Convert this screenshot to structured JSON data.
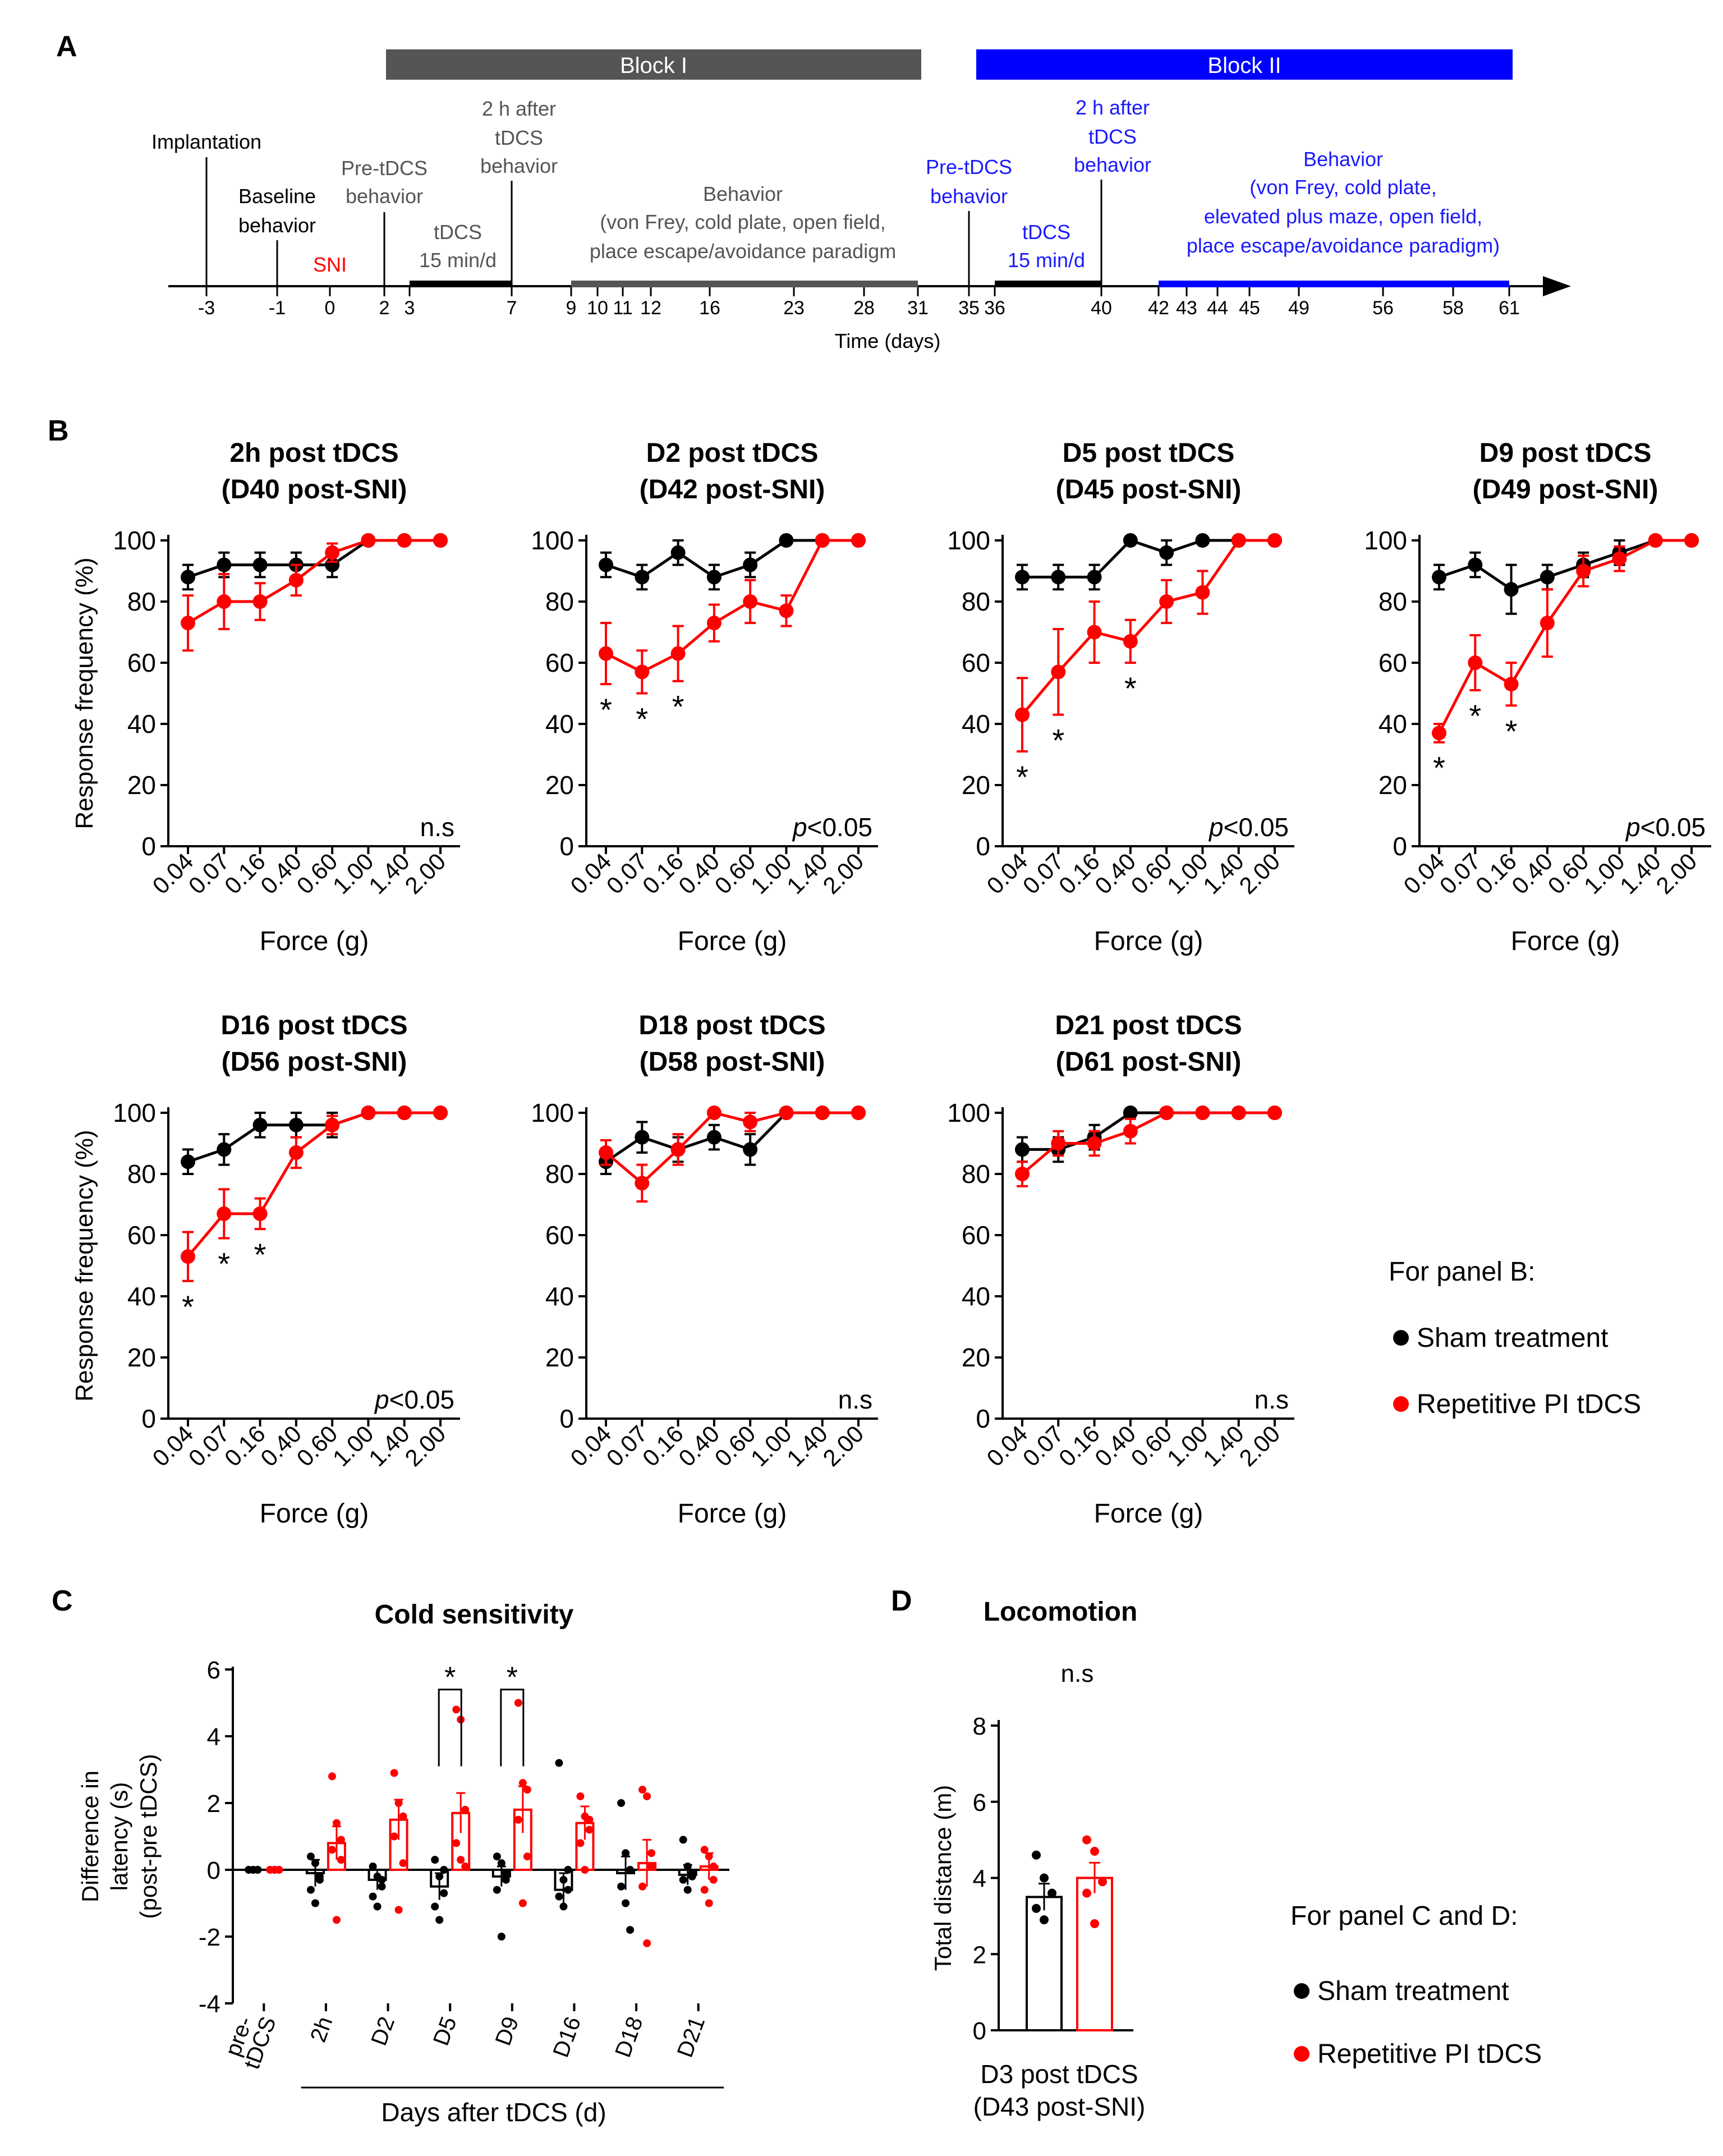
{
  "panel_labels": {
    "a": "A",
    "b": "B",
    "c": "C",
    "d": "D"
  },
  "colors": {
    "sham": "#000000",
    "tdcs": "#ff0000",
    "block1": "#555555",
    "block2": "#0000ff",
    "blue_text": "#1a1aff"
  },
  "timeline": {
    "block1": "Block I",
    "block2": "Block II",
    "axis_label": "Time (days)",
    "ticks": [
      "-3",
      "-1",
      "0",
      "2",
      "3",
      "7",
      "9",
      "10",
      "11",
      "12",
      "16",
      "23",
      "28",
      "31",
      "35",
      "36",
      "40",
      "42",
      "43",
      "44",
      "45",
      "49",
      "56",
      "58",
      "61"
    ],
    "events": {
      "implantation": "Implantation",
      "baseline_1": "Baseline",
      "baseline_2": "behavior",
      "sni": "SNI",
      "pre1_1": "Pre-tDCS",
      "pre1_2": "behavior",
      "tdcs1_1": "tDCS",
      "tdcs1_2": "15 min/d",
      "after1_1": "2 h after",
      "after1_2": "tDCS",
      "after1_3": "behavior",
      "beh1_1": "Behavior",
      "beh1_2": "(von Frey, cold plate, open field,",
      "beh1_3": "place escape/avoidance paradigm",
      "pre2_1": "Pre-tDCS",
      "pre2_2": "behavior",
      "after2_1": "2 h after",
      "after2_2": "tDCS",
      "after2_3": "behavior",
      "tdcs2_1": "tDCS",
      "tdcs2_2": "15 min/d",
      "beh2_1": "Behavior",
      "beh2_2": "(von Frey, cold plate,",
      "beh2_3": "elevated plus maze, open field,",
      "beh2_4": "place escape/avoidance paradigm)"
    }
  },
  "panel_b_axes": {
    "ylabel": "Response frequency (%)",
    "xlabel": "Force (g)",
    "yticks": [
      "0",
      "20",
      "40",
      "60",
      "80",
      "100"
    ],
    "xticks": [
      "0.04",
      "0.07",
      "0.16",
      "0.40",
      "0.60",
      "1.00",
      "1.40",
      "2.00"
    ]
  },
  "legend_b": {
    "title": "For panel B:",
    "sham": "Sham treatment",
    "tdcs": "Repetitive PI tDCS"
  },
  "legend_cd": {
    "title": "For panel C and D:",
    "sham": "Sham treatment",
    "tdcs": "Repetitive PI tDCS"
  },
  "panel_c_axes": {
    "ylabel_1": "Difference in",
    "ylabel_2": "latency (s)",
    "ylabel_3": "(post-pre tDCS)",
    "xlabel": "Days after tDCS (d)",
    "yticks": [
      "6",
      "4",
      "2",
      "0",
      "-2",
      "-4"
    ],
    "cat_pre_1": "pre-",
    "cat_pre_2": "tDCS"
  },
  "panel_d_axes": {
    "ylabel": "Total distance (m)",
    "yticks": [
      "0",
      "2",
      "4",
      "6",
      "8"
    ],
    "xlabel_1": "D3 post tDCS",
    "xlabel_2": "(D43 post-SNI)"
  },
  "chart_data": [
    {
      "type": "line",
      "id": "b1",
      "title": "2h post tDCS",
      "subtitle": "(D40 post-SNI)",
      "categories": [
        "0.04",
        "0.07",
        "0.16",
        "0.40",
        "0.60",
        "1.00",
        "1.40",
        "2.00"
      ],
      "series": [
        {
          "name": "Sham treatment",
          "values": [
            88,
            92,
            92,
            92,
            92,
            100,
            100,
            100
          ],
          "err": [
            4,
            4,
            4,
            4,
            4,
            0,
            0,
            0
          ]
        },
        {
          "name": "Repetitive PI tDCS",
          "values": [
            73,
            80,
            80,
            87,
            96,
            100,
            100,
            100
          ],
          "err": [
            9,
            9,
            6,
            5,
            3,
            0,
            0,
            0
          ]
        }
      ],
      "ylim": [
        0,
        100
      ],
      "annotation": "n.s",
      "stars": []
    },
    {
      "type": "line",
      "id": "b2",
      "title": "D2 post tDCS",
      "subtitle": "(D42 post-SNI)",
      "categories": [
        "0.04",
        "0.07",
        "0.16",
        "0.40",
        "0.60",
        "1.00",
        "1.40",
        "2.00"
      ],
      "series": [
        {
          "name": "Sham treatment",
          "values": [
            92,
            88,
            96,
            88,
            92,
            100,
            100,
            100
          ],
          "err": [
            4,
            4,
            4,
            4,
            4,
            0,
            0,
            0
          ]
        },
        {
          "name": "Repetitive PI tDCS",
          "values": [
            63,
            57,
            63,
            73,
            80,
            77,
            100,
            100
          ],
          "err": [
            10,
            7,
            9,
            6,
            7,
            5,
            0,
            0
          ]
        }
      ],
      "ylim": [
        0,
        100
      ],
      "annotation_pre": "p",
      "annotation": "<0.05",
      "stars": [
        0,
        1,
        2
      ]
    },
    {
      "type": "line",
      "id": "b3",
      "title": "D5 post tDCS",
      "subtitle": "(D45 post-SNI)",
      "categories": [
        "0.04",
        "0.07",
        "0.16",
        "0.40",
        "0.60",
        "1.00",
        "1.40",
        "2.00"
      ],
      "series": [
        {
          "name": "Sham treatment",
          "values": [
            88,
            88,
            88,
            100,
            96,
            100,
            100,
            100
          ],
          "err": [
            4,
            4,
            4,
            0,
            4,
            0,
            0,
            0
          ]
        },
        {
          "name": "Repetitive PI tDCS",
          "values": [
            43,
            57,
            70,
            67,
            80,
            83,
            100,
            100
          ],
          "err": [
            12,
            14,
            10,
            7,
            7,
            7,
            0,
            0
          ]
        }
      ],
      "ylim": [
        0,
        100
      ],
      "annotation_pre": "p",
      "annotation": "<0.05",
      "stars": [
        0,
        1,
        3
      ]
    },
    {
      "type": "line",
      "id": "b4",
      "title": "D9 post tDCS",
      "subtitle": "(D49 post-SNI)",
      "categories": [
        "0.04",
        "0.07",
        "0.16",
        "0.40",
        "0.60",
        "1.00",
        "1.40",
        "2.00"
      ],
      "series": [
        {
          "name": "Sham treatment",
          "values": [
            88,
            92,
            84,
            88,
            92,
            96,
            100,
            100
          ],
          "err": [
            4,
            4,
            8,
            4,
            4,
            4,
            0,
            0
          ]
        },
        {
          "name": "Repetitive PI tDCS",
          "values": [
            37,
            60,
            53,
            73,
            90,
            94,
            100,
            100
          ],
          "err": [
            3,
            9,
            7,
            11,
            5,
            4,
            0,
            0
          ]
        }
      ],
      "ylim": [
        0,
        100
      ],
      "annotation_pre": "p",
      "annotation": "<0.05",
      "stars": [
        0,
        1,
        2
      ]
    },
    {
      "type": "line",
      "id": "b5",
      "title": "D16 post tDCS",
      "subtitle": "(D56 post-SNI)",
      "categories": [
        "0.04",
        "0.07",
        "0.16",
        "0.40",
        "0.60",
        "1.00",
        "1.40",
        "2.00"
      ],
      "series": [
        {
          "name": "Sham treatment",
          "values": [
            84,
            88,
            96,
            96,
            96,
            100,
            100,
            100
          ],
          "err": [
            4,
            5,
            4,
            4,
            4,
            0,
            0,
            0
          ]
        },
        {
          "name": "Repetitive PI tDCS",
          "values": [
            53,
            67,
            67,
            87,
            96,
            100,
            100,
            100
          ],
          "err": [
            8,
            8,
            5,
            5,
            3,
            0,
            0,
            0
          ]
        }
      ],
      "ylim": [
        0,
        100
      ],
      "annotation_pre": "p",
      "annotation": "<0.05",
      "stars": [
        0,
        1,
        2
      ]
    },
    {
      "type": "line",
      "id": "b6",
      "title": "D18 post tDCS",
      "subtitle": "(D58 post-SNI)",
      "categories": [
        "0.04",
        "0.07",
        "0.16",
        "0.40",
        "0.60",
        "1.00",
        "1.40",
        "2.00"
      ],
      "series": [
        {
          "name": "Sham treatment",
          "values": [
            84,
            92,
            88,
            92,
            88,
            100,
            100,
            100
          ],
          "err": [
            4,
            5,
            4,
            4,
            5,
            0,
            0,
            0
          ]
        },
        {
          "name": "Repetitive PI tDCS",
          "values": [
            87,
            77,
            88,
            100,
            97,
            100,
            100,
            100
          ],
          "err": [
            4,
            6,
            5,
            0,
            3,
            0,
            0,
            0
          ]
        }
      ],
      "ylim": [
        0,
        100
      ],
      "annotation": "n.s",
      "stars": []
    },
    {
      "type": "line",
      "id": "b7",
      "title": "D21 post tDCS",
      "subtitle": "(D61 post-SNI)",
      "categories": [
        "0.04",
        "0.07",
        "0.16",
        "0.40",
        "0.60",
        "1.00",
        "1.40",
        "2.00"
      ],
      "series": [
        {
          "name": "Sham treatment",
          "values": [
            88,
            88,
            92,
            100,
            100,
            100,
            100,
            100
          ],
          "err": [
            4,
            4,
            4,
            0,
            0,
            0,
            0,
            0
          ]
        },
        {
          "name": "Repetitive PI tDCS",
          "values": [
            80,
            90,
            90,
            94,
            100,
            100,
            100,
            100
          ],
          "err": [
            4,
            4,
            4,
            4,
            0,
            0,
            0,
            0
          ]
        }
      ],
      "ylim": [
        0,
        100
      ],
      "annotation": "n.s",
      "stars": []
    },
    {
      "type": "bar",
      "id": "c",
      "title": "Cold sensitivity",
      "categories": [
        "pre-tDCS",
        "2h",
        "D2",
        "D5",
        "D9",
        "D16",
        "D18",
        "D21"
      ],
      "series": [
        {
          "name": "Sham treatment",
          "values": [
            0,
            -0.1,
            -0.3,
            -0.5,
            -0.2,
            -0.6,
            -0.1,
            -0.15
          ],
          "err": [
            0,
            0.4,
            0.3,
            0.4,
            0.3,
            0.5,
            0.5,
            0.3
          ],
          "points": [
            [
              0,
              0,
              0,
              0,
              0,
              0
            ],
            [
              0.4,
              0.2,
              -0.3,
              -0.6,
              -1.0,
              -0.2
            ],
            [
              0.1,
              -0.2,
              -0.5,
              -0.8,
              -1.1,
              -0.3
            ],
            [
              0.3,
              -0.2,
              -0.7,
              -1.1,
              -1.5,
              0.0
            ],
            [
              0.4,
              0.2,
              -0.3,
              -0.6,
              -2.0,
              -0.1
            ],
            [
              3.2,
              -0.3,
              -0.6,
              -0.8,
              -1.1,
              0.0
            ],
            [
              2.0,
              0.5,
              0.0,
              -0.5,
              -1.0,
              -1.8
            ],
            [
              0.9,
              0.1,
              -0.1,
              -0.3,
              -0.6,
              -0.2
            ]
          ]
        },
        {
          "name": "Repetitive PI tDCS",
          "values": [
            0,
            0.8,
            1.5,
            1.7,
            1.8,
            1.4,
            0.2,
            0.1
          ],
          "err": [
            0,
            0.5,
            0.6,
            0.6,
            0.7,
            0.5,
            0.7,
            0.4
          ],
          "points": [
            [
              0,
              0,
              0,
              0,
              0,
              0
            ],
            [
              2.8,
              1.4,
              0.9,
              0.6,
              -1.5,
              0.3
            ],
            [
              2.9,
              2.0,
              1.6,
              1.0,
              -1.2,
              0.2
            ],
            [
              4.8,
              4.5,
              1.8,
              0.8,
              0.3,
              0.1
            ],
            [
              5.0,
              2.6,
              2.4,
              1.5,
              -1.0,
              0.4
            ],
            [
              2.2,
              1.6,
              1.2,
              0.8,
              0.0,
              1.5
            ],
            [
              2.4,
              2.2,
              0.5,
              -0.5,
              -2.2,
              0.1
            ],
            [
              0.6,
              0.4,
              -0.3,
              -0.6,
              -1.0,
              0.1
            ]
          ]
        }
      ],
      "ylim": [
        -4,
        6
      ],
      "significance": [
        3,
        4
      ],
      "star": "*"
    },
    {
      "type": "bar",
      "id": "d",
      "title": "Locomotion",
      "categories": [
        "Sham treatment",
        "Repetitive PI tDCS"
      ],
      "values": [
        3.5,
        4.0
      ],
      "err": [
        0.35,
        0.4
      ],
      "points": [
        [
          4.6,
          4.0,
          3.6,
          3.2,
          2.9
        ],
        [
          5.0,
          4.7,
          3.9,
          3.6,
          2.8
        ]
      ],
      "ylim": [
        0,
        8
      ],
      "annotation": "n.s"
    }
  ]
}
